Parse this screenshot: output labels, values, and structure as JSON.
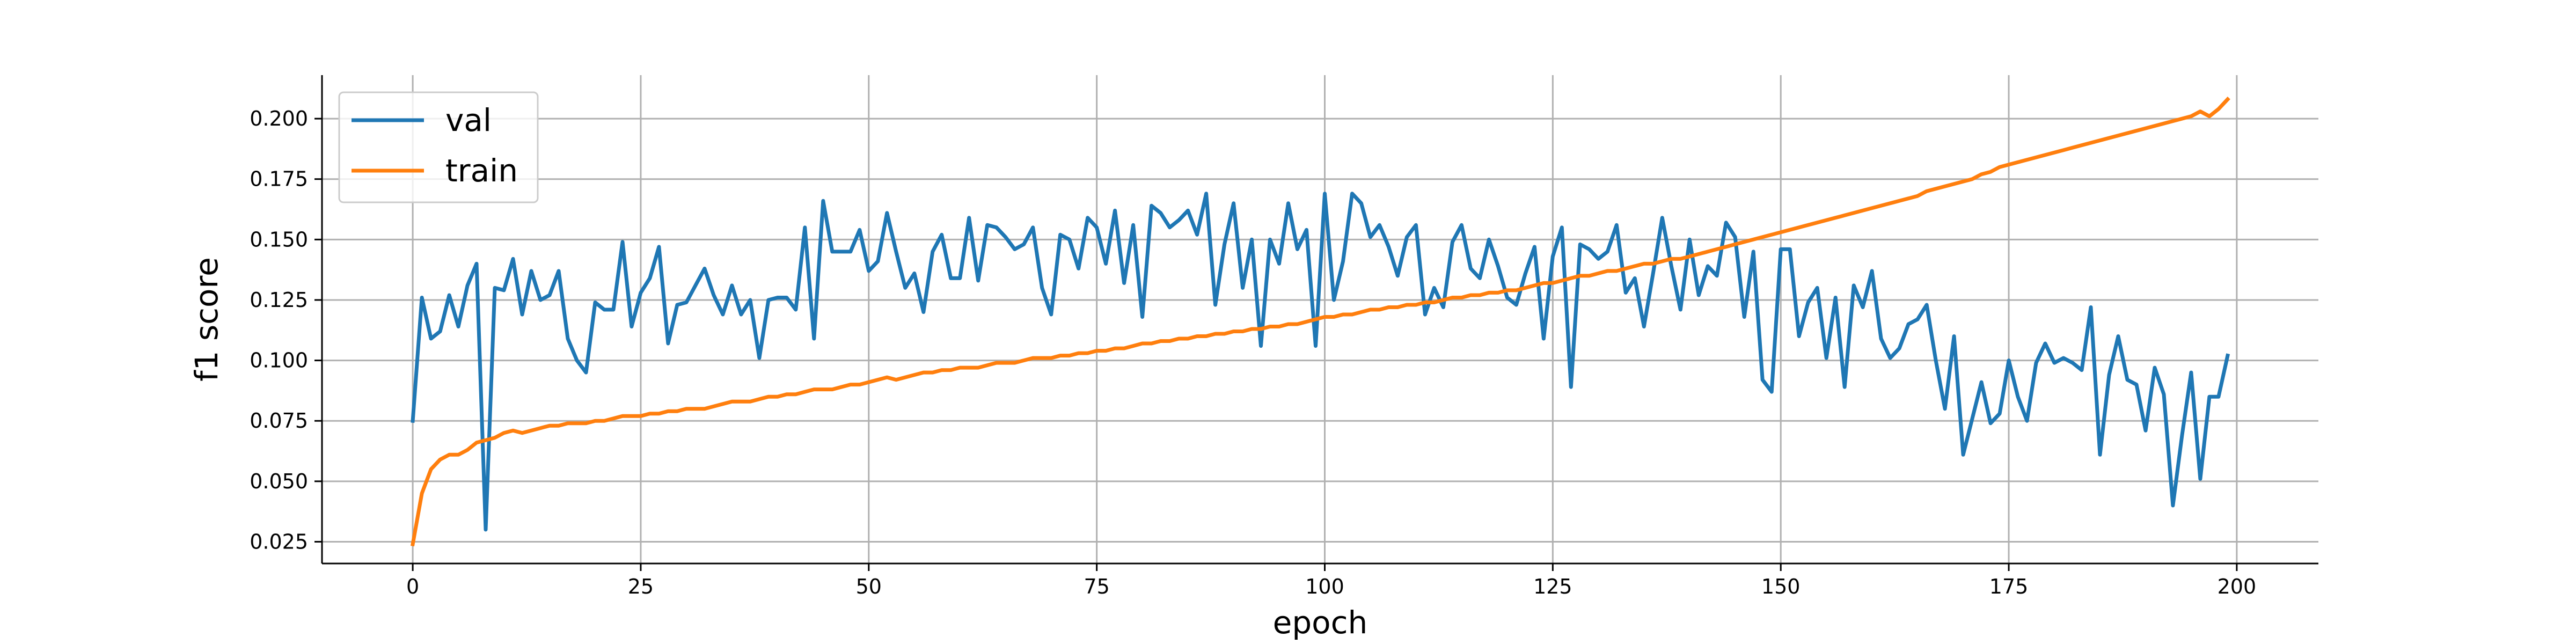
{
  "chart_data": {
    "type": "line",
    "xlabel": "epoch",
    "ylabel": "f1 score",
    "xlim": [
      -9.95,
      208.95
    ],
    "ylim": [
      0.016,
      0.218
    ],
    "xticks": [
      0,
      25,
      50,
      75,
      100,
      125,
      150,
      175,
      200
    ],
    "yticks": [
      0.025,
      0.05,
      0.075,
      0.1,
      0.125,
      0.15,
      0.175,
      0.2
    ],
    "ytick_labels": [
      "0.025",
      "0.050",
      "0.075",
      "0.100",
      "0.125",
      "0.150",
      "0.175",
      "0.200"
    ],
    "grid": true,
    "legend_position": "top-left",
    "series": [
      {
        "name": "val",
        "color": "#1f77b4",
        "x": [
          0,
          1,
          2,
          3,
          4,
          5,
          6,
          7,
          8,
          9,
          10,
          11,
          12,
          13,
          14,
          15,
          16,
          17,
          18,
          19,
          20,
          21,
          22,
          23,
          24,
          25,
          26,
          27,
          28,
          29,
          30,
          31,
          32,
          33,
          34,
          35,
          36,
          37,
          38,
          39,
          40,
          41,
          42,
          43,
          44,
          45,
          46,
          47,
          48,
          49,
          50,
          51,
          52,
          53,
          54,
          55,
          56,
          57,
          58,
          59,
          60,
          61,
          62,
          63,
          64,
          65,
          66,
          67,
          68,
          69,
          70,
          71,
          72,
          73,
          74,
          75,
          76,
          77,
          78,
          79,
          80,
          81,
          82,
          83,
          84,
          85,
          86,
          87,
          88,
          89,
          90,
          91,
          92,
          93,
          94,
          95,
          96,
          97,
          98,
          99,
          100,
          101,
          102,
          103,
          104,
          105,
          106,
          107,
          108,
          109,
          110,
          111,
          112,
          113,
          114,
          115,
          116,
          117,
          118,
          119,
          120,
          121,
          122,
          123,
          124,
          125,
          126,
          127,
          128,
          129,
          130,
          131,
          132,
          133,
          134,
          135,
          136,
          137,
          138,
          139,
          140,
          141,
          142,
          143,
          144,
          145,
          146,
          147,
          148,
          149,
          150,
          151,
          152,
          153,
          154,
          155,
          156,
          157,
          158,
          159,
          160,
          161,
          162,
          163,
          164,
          165,
          166,
          167,
          168,
          169,
          170,
          171,
          172,
          173,
          174,
          175,
          176,
          177,
          178,
          179,
          180,
          181,
          182,
          183,
          184,
          185,
          186,
          187,
          188,
          189,
          190,
          191,
          192,
          193,
          194,
          195,
          196,
          197,
          198,
          199
        ],
        "values": [
          0.075,
          0.126,
          0.109,
          0.112,
          0.127,
          0.114,
          0.131,
          0.14,
          0.03,
          0.13,
          0.129,
          0.142,
          0.119,
          0.137,
          0.125,
          0.127,
          0.137,
          0.109,
          0.1,
          0.095,
          0.124,
          0.121,
          0.121,
          0.149,
          0.114,
          0.128,
          0.134,
          0.147,
          0.107,
          0.123,
          0.124,
          0.131,
          0.138,
          0.127,
          0.119,
          0.131,
          0.119,
          0.125,
          0.101,
          0.125,
          0.126,
          0.126,
          0.121,
          0.155,
          0.109,
          0.166,
          0.145,
          0.145,
          0.145,
          0.154,
          0.137,
          0.141,
          0.161,
          0.145,
          0.13,
          0.136,
          0.12,
          0.145,
          0.152,
          0.134,
          0.134,
          0.159,
          0.133,
          0.156,
          0.155,
          0.151,
          0.146,
          0.148,
          0.155,
          0.13,
          0.119,
          0.152,
          0.15,
          0.138,
          0.159,
          0.155,
          0.14,
          0.162,
          0.132,
          0.156,
          0.118,
          0.164,
          0.161,
          0.155,
          0.158,
          0.162,
          0.152,
          0.169,
          0.123,
          0.148,
          0.165,
          0.13,
          0.15,
          0.106,
          0.15,
          0.14,
          0.165,
          0.146,
          0.154,
          0.106,
          0.169,
          0.125,
          0.141,
          0.169,
          0.165,
          0.151,
          0.156,
          0.147,
          0.135,
          0.151,
          0.156,
          0.119,
          0.13,
          0.122,
          0.149,
          0.156,
          0.138,
          0.134,
          0.15,
          0.139,
          0.126,
          0.123,
          0.136,
          0.147,
          0.109,
          0.143,
          0.155,
          0.089,
          0.148,
          0.146,
          0.142,
          0.145,
          0.156,
          0.128,
          0.134,
          0.114,
          0.136,
          0.159,
          0.139,
          0.121,
          0.15,
          0.127,
          0.139,
          0.135,
          0.157,
          0.151,
          0.118,
          0.145,
          0.092,
          0.087,
          0.146,
          0.146,
          0.11,
          0.124,
          0.13,
          0.101,
          0.126,
          0.089,
          0.131,
          0.122,
          0.137,
          0.109,
          0.101,
          0.105,
          0.115,
          0.117,
          0.123,
          0.1,
          0.08,
          0.11,
          0.061,
          0.076,
          0.091,
          0.074,
          0.078,
          0.1,
          0.085,
          0.075,
          0.099,
          0.107,
          0.099,
          0.101,
          0.099,
          0.096,
          0.122,
          0.061,
          0.094,
          0.11,
          0.092,
          0.09,
          0.071,
          0.097,
          0.086,
          0.04,
          0.069,
          0.095,
          0.051,
          0.085,
          0.085,
          0.102
        ]
      },
      {
        "name": "train",
        "color": "#ff7f0e",
        "x": [
          0,
          1,
          2,
          3,
          4,
          5,
          6,
          7,
          8,
          9,
          10,
          11,
          12,
          13,
          14,
          15,
          16,
          17,
          18,
          19,
          20,
          21,
          22,
          23,
          24,
          25,
          26,
          27,
          28,
          29,
          30,
          31,
          32,
          33,
          34,
          35,
          36,
          37,
          38,
          39,
          40,
          41,
          42,
          43,
          44,
          45,
          46,
          47,
          48,
          49,
          50,
          51,
          52,
          53,
          54,
          55,
          56,
          57,
          58,
          59,
          60,
          61,
          62,
          63,
          64,
          65,
          66,
          67,
          68,
          69,
          70,
          71,
          72,
          73,
          74,
          75,
          76,
          77,
          78,
          79,
          80,
          81,
          82,
          83,
          84,
          85,
          86,
          87,
          88,
          89,
          90,
          91,
          92,
          93,
          94,
          95,
          96,
          97,
          98,
          99,
          100,
          101,
          102,
          103,
          104,
          105,
          106,
          107,
          108,
          109,
          110,
          111,
          112,
          113,
          114,
          115,
          116,
          117,
          118,
          119,
          120,
          121,
          122,
          123,
          124,
          125,
          126,
          127,
          128,
          129,
          130,
          131,
          132,
          133,
          134,
          135,
          136,
          137,
          138,
          139,
          140,
          141,
          142,
          143,
          144,
          145,
          146,
          147,
          148,
          149,
          150,
          151,
          152,
          153,
          154,
          155,
          156,
          157,
          158,
          159,
          160,
          161,
          162,
          163,
          164,
          165,
          166,
          167,
          168,
          169,
          170,
          171,
          172,
          173,
          174,
          175,
          176,
          177,
          178,
          179,
          180,
          181,
          182,
          183,
          184,
          185,
          186,
          187,
          188,
          189,
          190,
          191,
          192,
          193,
          194,
          195,
          196,
          197,
          198,
          199
        ],
        "values": [
          0.024,
          0.045,
          0.055,
          0.059,
          0.061,
          0.061,
          0.063,
          0.066,
          0.067,
          0.068,
          0.07,
          0.071,
          0.07,
          0.071,
          0.072,
          0.073,
          0.073,
          0.074,
          0.074,
          0.074,
          0.075,
          0.075,
          0.076,
          0.077,
          0.077,
          0.077,
          0.078,
          0.078,
          0.079,
          0.079,
          0.08,
          0.08,
          0.08,
          0.081,
          0.082,
          0.083,
          0.083,
          0.083,
          0.084,
          0.085,
          0.085,
          0.086,
          0.086,
          0.087,
          0.088,
          0.088,
          0.088,
          0.089,
          0.09,
          0.09,
          0.091,
          0.092,
          0.093,
          0.092,
          0.093,
          0.094,
          0.095,
          0.095,
          0.096,
          0.096,
          0.097,
          0.097,
          0.097,
          0.098,
          0.099,
          0.099,
          0.099,
          0.1,
          0.101,
          0.101,
          0.101,
          0.102,
          0.102,
          0.103,
          0.103,
          0.104,
          0.104,
          0.105,
          0.105,
          0.106,
          0.107,
          0.107,
          0.108,
          0.108,
          0.109,
          0.109,
          0.11,
          0.11,
          0.111,
          0.111,
          0.112,
          0.112,
          0.113,
          0.113,
          0.114,
          0.114,
          0.115,
          0.115,
          0.116,
          0.117,
          0.118,
          0.118,
          0.119,
          0.119,
          0.12,
          0.121,
          0.121,
          0.122,
          0.122,
          0.123,
          0.123,
          0.124,
          0.124,
          0.125,
          0.126,
          0.126,
          0.127,
          0.127,
          0.128,
          0.128,
          0.129,
          0.129,
          0.13,
          0.131,
          0.132,
          0.132,
          0.133,
          0.134,
          0.135,
          0.135,
          0.136,
          0.137,
          0.137,
          0.138,
          0.139,
          0.14,
          0.14,
          0.141,
          0.142,
          0.142,
          0.143,
          0.144,
          0.145,
          0.146,
          0.147,
          0.148,
          0.149,
          0.15,
          0.151,
          0.152,
          0.153,
          0.154,
          0.155,
          0.156,
          0.157,
          0.158,
          0.159,
          0.16,
          0.161,
          0.162,
          0.163,
          0.164,
          0.165,
          0.166,
          0.167,
          0.168,
          0.17,
          0.171,
          0.172,
          0.173,
          0.174,
          0.175,
          0.177,
          0.178,
          0.18,
          0.181,
          0.182,
          0.183,
          0.184,
          0.185,
          0.186,
          0.187,
          0.188,
          0.189,
          0.19,
          0.191,
          0.192,
          0.193,
          0.194,
          0.195,
          0.196,
          0.197,
          0.198,
          0.199,
          0.2,
          0.201,
          0.203,
          0.201,
          0.204,
          0.208
        ]
      }
    ]
  }
}
